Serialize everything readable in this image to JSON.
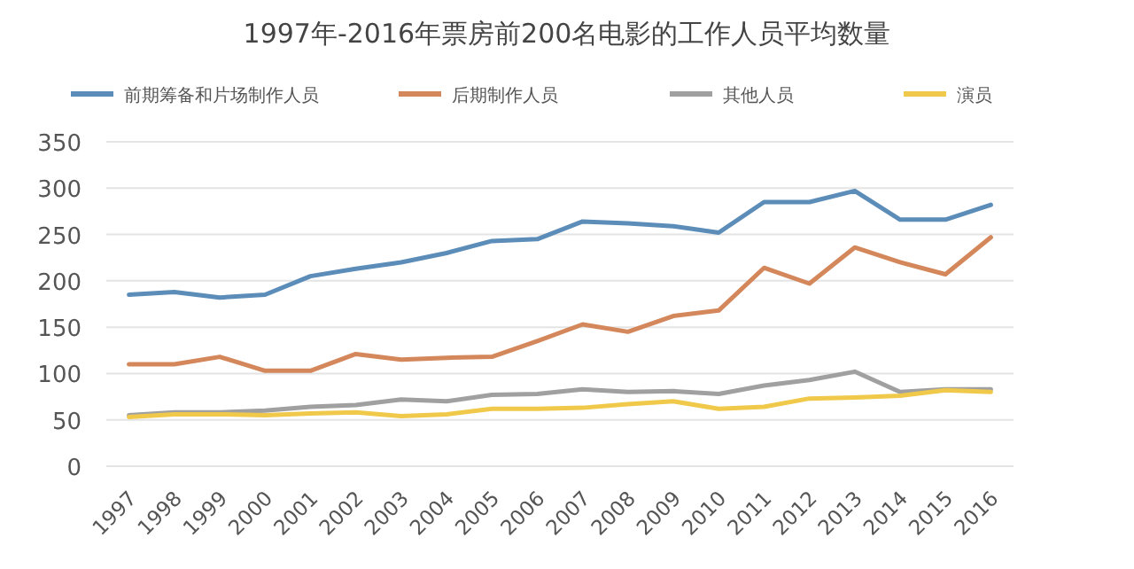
{
  "chart_data": {
    "type": "line",
    "title": "1997年-2016年票房前200名电影的工作人员平均数量",
    "categories": [
      "1997",
      "1998",
      "1999",
      "2000",
      "2001",
      "2002",
      "2003",
      "2004",
      "2005",
      "2006",
      "2007",
      "2008",
      "2009",
      "2010",
      "2011",
      "2012",
      "2013",
      "2014",
      "2015",
      "2016"
    ],
    "series": [
      {
        "name": "前期筹备和片场制作人员",
        "color": "#5b8db8",
        "values": [
          185,
          188,
          182,
          185,
          205,
          213,
          220,
          230,
          243,
          245,
          264,
          262,
          259,
          252,
          285,
          285,
          297,
          266,
          266,
          282
        ]
      },
      {
        "name": "后期制作人员",
        "color": "#d4875a",
        "values": [
          110,
          110,
          118,
          103,
          103,
          121,
          115,
          117,
          118,
          135,
          153,
          145,
          162,
          168,
          214,
          197,
          236,
          220,
          207,
          247
        ]
      },
      {
        "name": "其他人员",
        "color": "#a0a0a0",
        "values": [
          55,
          58,
          58,
          60,
          64,
          66,
          72,
          70,
          77,
          78,
          83,
          80,
          81,
          78,
          87,
          93,
          102,
          80,
          83,
          83
        ]
      },
      {
        "name": "演员",
        "color": "#f0c94a",
        "values": [
          53,
          56,
          56,
          55,
          57,
          58,
          54,
          56,
          62,
          62,
          63,
          67,
          70,
          62,
          64,
          73,
          74,
          76,
          82,
          80
        ]
      }
    ],
    "ylim": [
      0,
      350
    ],
    "yticks": [
      0,
      50,
      100,
      150,
      200,
      250,
      300,
      350
    ],
    "grid": "y",
    "legend": "top",
    "marker": "none",
    "line_style": "solid"
  }
}
